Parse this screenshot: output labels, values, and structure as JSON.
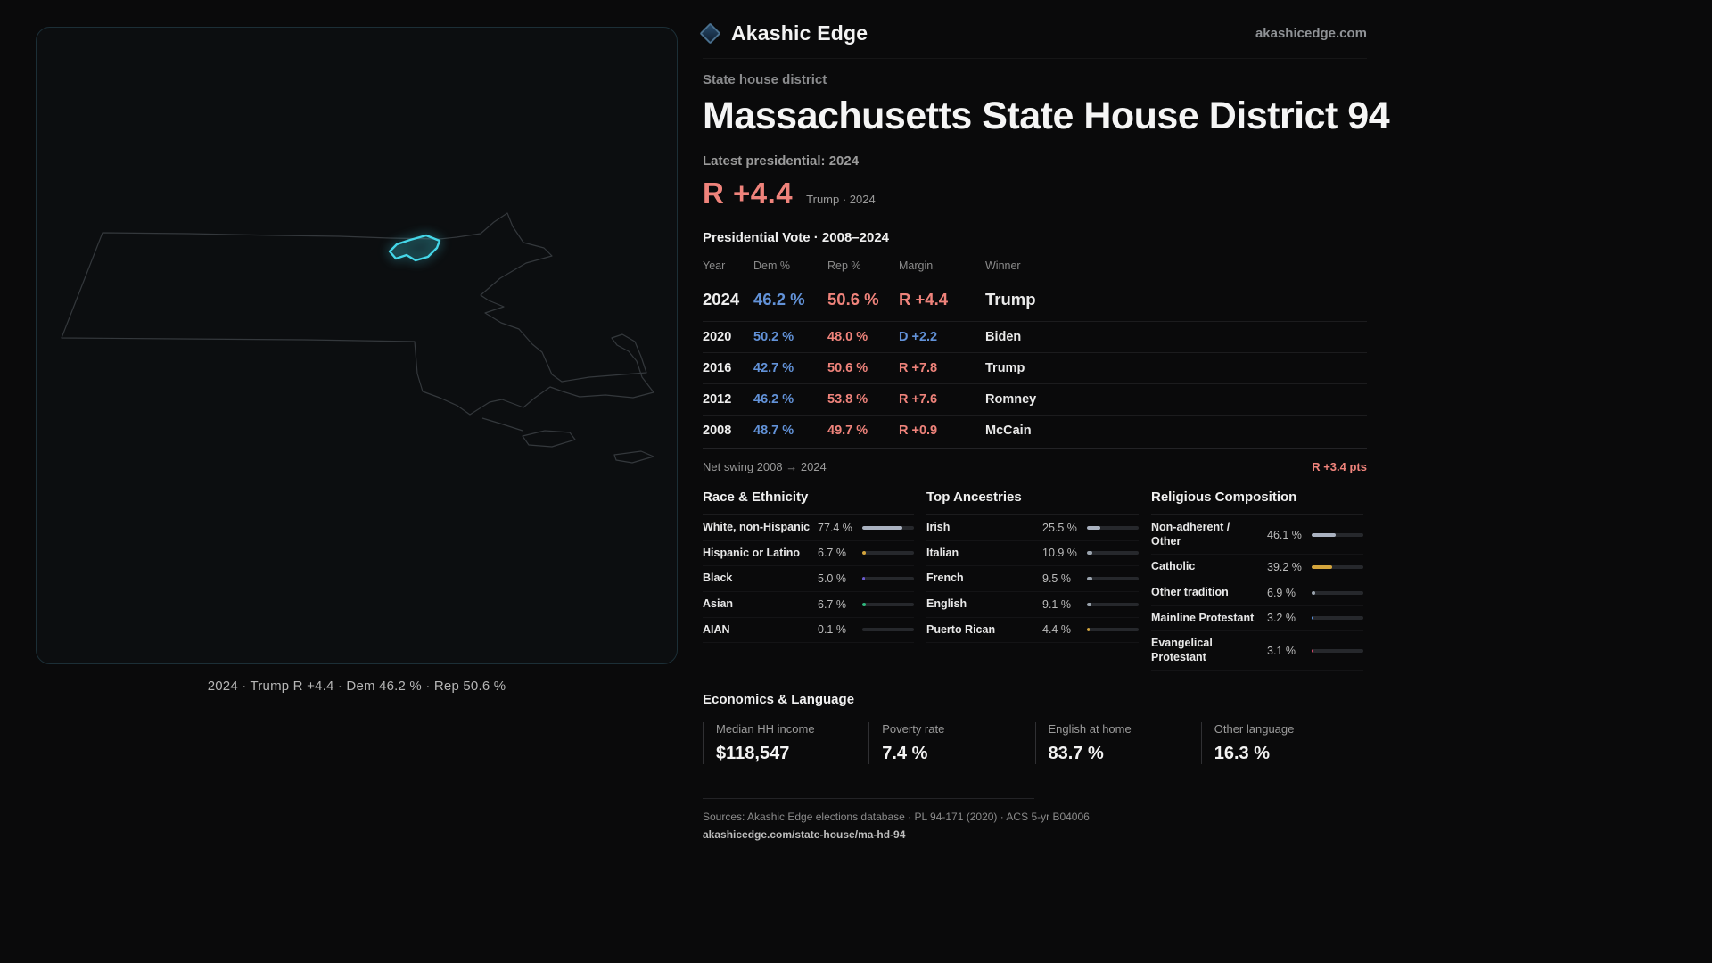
{
  "colors": {
    "rep": "#ef837b",
    "dem": "#6292d8",
    "accent": "#45d6e8",
    "gold": "#d4a53c"
  },
  "header": {
    "brand": "Akashic Edge",
    "site": "akashicedge.com",
    "kicker": "State house district",
    "title": "Massachusetts State House District 94",
    "latest_label": "Latest presidential: 2024",
    "margin_value": "R +4.4",
    "margin_context": "Trump · 2024"
  },
  "map": {
    "caption": "2024 · Trump R +4.4 · Dem 46.2 % · Rep 50.6 %",
    "outline_icon": "massachusetts-state-outline",
    "highlight_icon": "district-94-highlight"
  },
  "vote_table": {
    "title": "Presidential Vote · 2008–2024",
    "columns": [
      "Year",
      "Dem %",
      "Rep %",
      "Margin",
      "Winner"
    ],
    "rows": [
      {
        "year": "2024",
        "dem": "46.2 %",
        "rep": "50.6 %",
        "margin": "R +4.4",
        "margin_party": "R",
        "winner": "Trump"
      },
      {
        "year": "2020",
        "dem": "50.2 %",
        "rep": "48.0 %",
        "margin": "D +2.2",
        "margin_party": "D",
        "winner": "Biden"
      },
      {
        "year": "2016",
        "dem": "42.7 %",
        "rep": "50.6 %",
        "margin": "R +7.8",
        "margin_party": "R",
        "winner": "Trump"
      },
      {
        "year": "2012",
        "dem": "46.2 %",
        "rep": "53.8 %",
        "margin": "R +7.6",
        "margin_party": "R",
        "winner": "Romney"
      },
      {
        "year": "2008",
        "dem": "48.7 %",
        "rep": "49.7 %",
        "margin": "R +0.9",
        "margin_party": "R",
        "winner": "McCain"
      }
    ],
    "net_swing_label": "Net swing 2008 → 2024",
    "net_swing_value": "R +3.4 pts"
  },
  "demographics": [
    {
      "title": "Race & Ethnicity",
      "rows": [
        {
          "label": "White, non-Hispanic",
          "value": "77.4 %",
          "pct": 77.4,
          "color": "#aab2c0"
        },
        {
          "label": "Hispanic or Latino",
          "value": "6.7 %",
          "pct": 6.7,
          "color": "#d4a53c"
        },
        {
          "label": "Black",
          "value": "5.0 %",
          "pct": 5.0,
          "color": "#6a5acd"
        },
        {
          "label": "Asian",
          "value": "6.7 %",
          "pct": 6.7,
          "color": "#2eb87d"
        },
        {
          "label": "AIAN",
          "value": "0.1 %",
          "pct": 0.1,
          "color": "#9aa3ad"
        }
      ]
    },
    {
      "title": "Top Ancestries",
      "rows": [
        {
          "label": "Irish",
          "value": "25.5 %",
          "pct": 25.5,
          "color": "#aab2c0"
        },
        {
          "label": "Italian",
          "value": "10.9 %",
          "pct": 10.9,
          "color": "#9aa3ad"
        },
        {
          "label": "French",
          "value": "9.5 %",
          "pct": 9.5,
          "color": "#9aa3ad"
        },
        {
          "label": "English",
          "value": "9.1 %",
          "pct": 9.1,
          "color": "#9aa3ad"
        },
        {
          "label": "Puerto Rican",
          "value": "4.4 %",
          "pct": 4.4,
          "color": "#d4a53c"
        }
      ]
    },
    {
      "title": "Religious Composition",
      "rows": [
        {
          "label": "Non-adherent / Other",
          "value": "46.1 %",
          "pct": 46.1,
          "color": "#aab2c0"
        },
        {
          "label": "Catholic",
          "value": "39.2 %",
          "pct": 39.2,
          "color": "#d4a53c"
        },
        {
          "label": "Other tradition",
          "value": "6.9 %",
          "pct": 6.9,
          "color": "#9aa3ad"
        },
        {
          "label": "Mainline Protestant",
          "value": "3.2 %",
          "pct": 3.2,
          "color": "#5b8fd9"
        },
        {
          "label": "Evangelical Protestant",
          "value": "3.1 %",
          "pct": 3.1,
          "color": "#d6496b"
        }
      ]
    }
  ],
  "economics": {
    "title": "Economics & Language",
    "stats": [
      {
        "label": "Median HH income",
        "value": "$118,547"
      },
      {
        "label": "Poverty rate",
        "value": "7.4 %"
      },
      {
        "label": "English at home",
        "value": "83.7 %"
      },
      {
        "label": "Other language",
        "value": "16.3 %"
      }
    ]
  },
  "footer": {
    "sources": "Sources: Akashic Edge elections database · PL 94-171 (2020) · ACS 5-yr B04006",
    "permalink": "akashicedge.com/state-house/ma-hd-94"
  }
}
